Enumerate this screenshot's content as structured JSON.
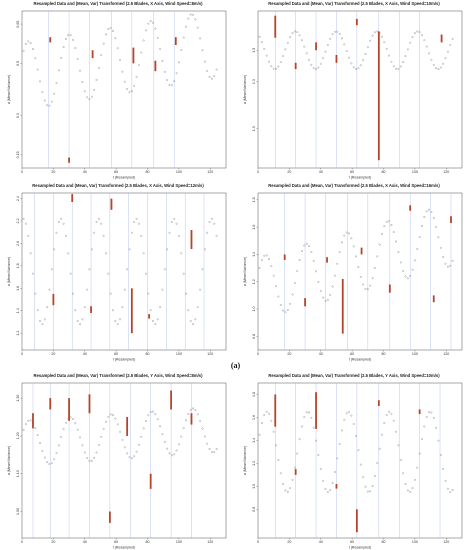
{
  "figure_labels": {
    "a": "(a)"
  },
  "colors": {
    "point": "#8a8a8a",
    "bar": "#b5452a",
    "vline": "#a8b8e8",
    "axis": "#555555"
  },
  "chart_data": [
    {
      "type": "scatter",
      "title": "Resampled Data and (Mean, Var) Transformed (2.5 Blades, X Axis, Wind Speed=8m/s)",
      "xlabel": "t (Resampled)",
      "ylabel": "a (Mean/Variance)",
      "xlim": [
        0,
        130
      ],
      "ylim": [
        0.1,
        0.7
      ],
      "xticks": [
        0,
        20,
        40,
        60,
        80,
        100,
        120
      ],
      "yticks": [
        {
          "v": 0.15,
          "t": "0.15"
        },
        {
          "v": 0.3,
          "t": "0.3"
        },
        {
          "v": 0.5,
          "t": "0.5"
        },
        {
          "v": 0.65,
          "t": "0.65"
        }
      ],
      "curve": {
        "base": 0.45,
        "amp": 0.13,
        "period": 26,
        "phase": 0.6,
        "trend": 0.001,
        "x_end": 125,
        "step": 1.5
      },
      "vlines": [
        17,
        30,
        43,
        57,
        70,
        84,
        97
      ],
      "bars": [
        {
          "x": 18,
          "y0": 0.58,
          "y1": 0.6
        },
        {
          "x": 30,
          "y0": 0.12,
          "y1": 0.14
        },
        {
          "x": 45,
          "y0": 0.52,
          "y1": 0.55
        },
        {
          "x": 71,
          "y0": 0.5,
          "y1": 0.56
        },
        {
          "x": 85,
          "y0": 0.47,
          "y1": 0.51
        },
        {
          "x": 98,
          "y0": 0.57,
          "y1": 0.6
        }
      ]
    },
    {
      "type": "scatter",
      "title": "Resampled Data and (Mean, Var) Transformed (2.5 Blades, X Axis, Wind Speed=10m/s)",
      "xlabel": "t (Resampled)",
      "ylabel": "a (Mean/Variance)",
      "xlim": [
        0,
        130
      ],
      "ylim": [
        0.75,
        1.75
      ],
      "xticks": [
        0,
        20,
        40,
        60,
        80,
        100,
        120
      ],
      "yticks": [
        {
          "v": 1.0,
          "t": "1.0"
        },
        {
          "v": 1.3,
          "t": "1.3"
        },
        {
          "v": 1.5,
          "t": "1.5"
        }
      ],
      "curve": {
        "base": 1.5,
        "amp": 0.12,
        "period": 26,
        "phase": 2.1,
        "trend": 0,
        "x_end": 125,
        "step": 1.5
      },
      "vlines": [
        11,
        24,
        37,
        50,
        63,
        77,
        90,
        103
      ],
      "bars": [
        {
          "x": 11,
          "y0": 1.58,
          "y1": 1.72
        },
        {
          "x": 24,
          "y0": 1.38,
          "y1": 1.42
        },
        {
          "x": 37,
          "y0": 1.5,
          "y1": 1.55
        },
        {
          "x": 50,
          "y0": 1.42,
          "y1": 1.47
        },
        {
          "x": 63,
          "y0": 1.66,
          "y1": 1.7
        },
        {
          "x": 77,
          "y0": 0.8,
          "y1": 1.62
        },
        {
          "x": 117,
          "y0": 1.55,
          "y1": 1.6
        }
      ]
    },
    {
      "type": "scatter",
      "title": "Resampled Data and (Mean, Var) Transformed (2.5 Blades, X Axis, Wind Speed=12m/s)",
      "xlabel": "t (Resampled)",
      "ylabel": "a (Mean/Variance)",
      "xlim": [
        0,
        130
      ],
      "ylim": [
        1.05,
        2.45
      ],
      "xticks": [
        0,
        20,
        40,
        60,
        80,
        100,
        120
      ],
      "yticks": [
        {
          "v": 1.2,
          "t": "1.2"
        },
        {
          "v": 1.4,
          "t": "1.4"
        },
        {
          "v": 1.6,
          "t": "1.6"
        },
        {
          "v": 1.8,
          "t": "1.8"
        },
        {
          "v": 2.0,
          "t": "2.0"
        },
        {
          "v": 2.2,
          "t": "2.2"
        },
        {
          "v": 2.4,
          "t": "2.4"
        }
      ],
      "curve": {
        "base": 1.75,
        "amp": 0.47,
        "period": 24,
        "phase": 1.35,
        "trend": 0,
        "x_end": 125,
        "step": 1.5
      },
      "vlines": [
        8,
        20,
        32,
        44,
        56,
        68,
        80,
        92,
        104,
        116
      ],
      "bars": [
        {
          "x": 20,
          "y0": 1.45,
          "y1": 1.55
        },
        {
          "x": 32,
          "y0": 2.37,
          "y1": 2.44
        },
        {
          "x": 44,
          "y0": 1.38,
          "y1": 1.44
        },
        {
          "x": 57,
          "y0": 2.3,
          "y1": 2.4
        },
        {
          "x": 70,
          "y0": 1.2,
          "y1": 1.6
        },
        {
          "x": 81,
          "y0": 1.33,
          "y1": 1.37
        },
        {
          "x": 108,
          "y0": 1.95,
          "y1": 2.12
        }
      ]
    },
    {
      "type": "scatter",
      "title": "Resampled Data and (Mean, Var) Transformed (2.5 Blades, X Axis, Wind Speed=16m/s)",
      "xlabel": "t (Resampled)",
      "ylabel": "a (Mean/Variance)",
      "xlim": [
        0,
        130
      ],
      "ylim": [
        0.7,
        1.85
      ],
      "xticks": [
        0,
        20,
        40,
        60,
        80,
        100,
        120
      ],
      "yticks": [
        {
          "v": 0.8,
          "t": "0.8"
        },
        {
          "v": 1.0,
          "t": "1.0"
        },
        {
          "v": 1.2,
          "t": "1.2"
        },
        {
          "v": 1.4,
          "t": "1.4"
        },
        {
          "v": 1.6,
          "t": "1.6"
        },
        {
          "v": 1.8,
          "t": "1.8"
        }
      ],
      "curve": {
        "base": 1.15,
        "amp": 0.23,
        "period": 26,
        "phase": 0.45,
        "trend": 0.0032,
        "x_end": 125,
        "step": 1.5
      },
      "vlines": [
        17,
        30,
        43,
        57,
        70,
        84,
        97,
        110,
        123
      ],
      "bars": [
        {
          "x": 17,
          "y0": 1.36,
          "y1": 1.4
        },
        {
          "x": 30,
          "y0": 1.02,
          "y1": 1.08
        },
        {
          "x": 44,
          "y0": 1.34,
          "y1": 1.38
        },
        {
          "x": 54,
          "y0": 0.82,
          "y1": 1.22
        },
        {
          "x": 66,
          "y0": 1.4,
          "y1": 1.45
        },
        {
          "x": 84,
          "y0": 1.12,
          "y1": 1.18
        },
        {
          "x": 97,
          "y0": 1.72,
          "y1": 1.76
        },
        {
          "x": 112,
          "y0": 1.05,
          "y1": 1.1
        },
        {
          "x": 123,
          "y0": 1.63,
          "y1": 1.68
        }
      ]
    },
    {
      "type": "scatter",
      "title": "Resampled Data and (Mean, Var) Transformed (2.5 Blades, Y Axis, Wind Speed=8m/s)",
      "xlabel": "t (Resampled)",
      "ylabel": "a (Mean/Variance)",
      "xlim": [
        0,
        130
      ],
      "ylim": [
        0.93,
        1.34
      ],
      "xticks": [
        0,
        20,
        40,
        60,
        80,
        100,
        120
      ],
      "yticks": [
        {
          "v": 1.0,
          "t": "1.00"
        },
        {
          "v": 1.1,
          "t": "1.10"
        },
        {
          "v": 1.2,
          "t": "1.20"
        },
        {
          "v": 1.3,
          "t": "1.30"
        }
      ],
      "curve": {
        "base": 1.18,
        "amp": 0.06,
        "period": 26,
        "phase": 0.4,
        "trend": 0.0003,
        "x_end": 125,
        "step": 1.5
      },
      "vlines": [
        7,
        18,
        30,
        43,
        56,
        69,
        82,
        95,
        108
      ],
      "bars": [
        {
          "x": 7,
          "y0": 1.22,
          "y1": 1.26
        },
        {
          "x": 18,
          "y0": 1.27,
          "y1": 1.3
        },
        {
          "x": 30,
          "y0": 1.24,
          "y1": 1.3
        },
        {
          "x": 43,
          "y0": 1.26,
          "y1": 1.31
        },
        {
          "x": 56,
          "y0": 0.97,
          "y1": 1.0
        },
        {
          "x": 67,
          "y0": 1.2,
          "y1": 1.25
        },
        {
          "x": 82,
          "y0": 1.06,
          "y1": 1.1
        },
        {
          "x": 95,
          "y0": 1.27,
          "y1": 1.32
        },
        {
          "x": 108,
          "y0": 1.23,
          "y1": 1.26
        }
      ]
    },
    {
      "type": "scatter",
      "title": "Resampled Data and (Mean, Var) Transformed (2.5 Blades, Y Axis, Wind Speed=10m/s)",
      "xlabel": "t (Resampled)",
      "ylabel": "a (Mean/Variance)",
      "xlim": [
        0,
        130
      ],
      "ylim": [
        0.55,
        1.9
      ],
      "xticks": [
        0,
        20,
        40,
        60,
        80,
        100,
        120
      ],
      "yticks": [
        {
          "v": 0.8,
          "t": "0.8"
        },
        {
          "v": 1.0,
          "t": "1.0"
        },
        {
          "v": 1.2,
          "t": "1.2"
        },
        {
          "v": 1.4,
          "t": "1.4"
        },
        {
          "v": 1.6,
          "t": "1.6"
        },
        {
          "v": 1.8,
          "t": "1.8"
        }
      ],
      "curve": {
        "base": 1.3,
        "amp": 0.35,
        "period": 26,
        "phase": 0.2,
        "trend": 0,
        "x_end": 125,
        "step": 1.5
      },
      "vlines": [
        11,
        24,
        37,
        50,
        63,
        77,
        90,
        103,
        116
      ],
      "bars": [
        {
          "x": 11,
          "y0": 1.52,
          "y1": 1.8
        },
        {
          "x": 24,
          "y0": 1.1,
          "y1": 1.15
        },
        {
          "x": 37,
          "y0": 1.5,
          "y1": 1.82
        },
        {
          "x": 50,
          "y0": 0.98,
          "y1": 1.02
        },
        {
          "x": 63,
          "y0": 0.6,
          "y1": 0.8
        },
        {
          "x": 77,
          "y0": 1.7,
          "y1": 1.75
        },
        {
          "x": 103,
          "y0": 1.63,
          "y1": 1.67
        }
      ]
    }
  ]
}
